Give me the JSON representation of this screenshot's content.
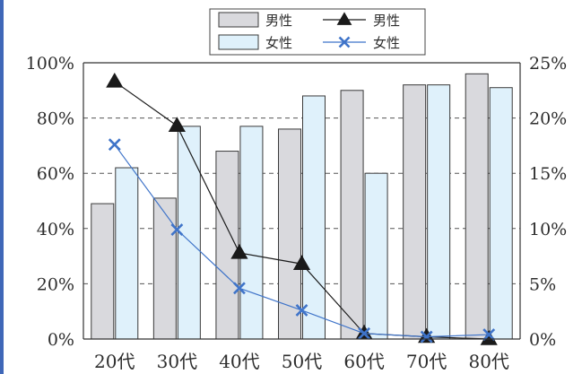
{
  "chart_data": {
    "type": "bar",
    "categories": [
      "20代",
      "30代",
      "40代",
      "50代",
      "60代",
      "70代",
      "80代"
    ],
    "left_axis": {
      "ticks": [
        "0%",
        "20%",
        "40%",
        "60%",
        "80%",
        "100%"
      ],
      "range": [
        0,
        100
      ]
    },
    "right_axis": {
      "ticks": [
        "0%",
        "5%",
        "10%",
        "15%",
        "20%",
        "25%"
      ],
      "range": [
        0,
        25
      ]
    },
    "grid": "dashed horizontal",
    "legend_position": "top-center",
    "series": [
      {
        "name": "男性",
        "kind": "bar",
        "axis": "left",
        "color": "#d9d9dd",
        "values": [
          49,
          51,
          68,
          76,
          90,
          92,
          96
        ]
      },
      {
        "name": "女性",
        "kind": "bar",
        "axis": "left",
        "color": "#dff1fb",
        "values": [
          62,
          77,
          77,
          88,
          60,
          92,
          91
        ]
      },
      {
        "name": "男性",
        "kind": "line",
        "axis": "right",
        "marker": "triangle",
        "color": "#1a1a1a",
        "values": [
          23.3,
          19.3,
          7.8,
          6.8,
          0.5,
          0.2,
          0
        ]
      },
      {
        "name": "女性",
        "kind": "line",
        "axis": "right",
        "marker": "x",
        "color": "#3f74c9",
        "values": [
          17.6,
          9.9,
          4.6,
          2.6,
          0.5,
          0.2,
          0.4
        ]
      }
    ]
  }
}
